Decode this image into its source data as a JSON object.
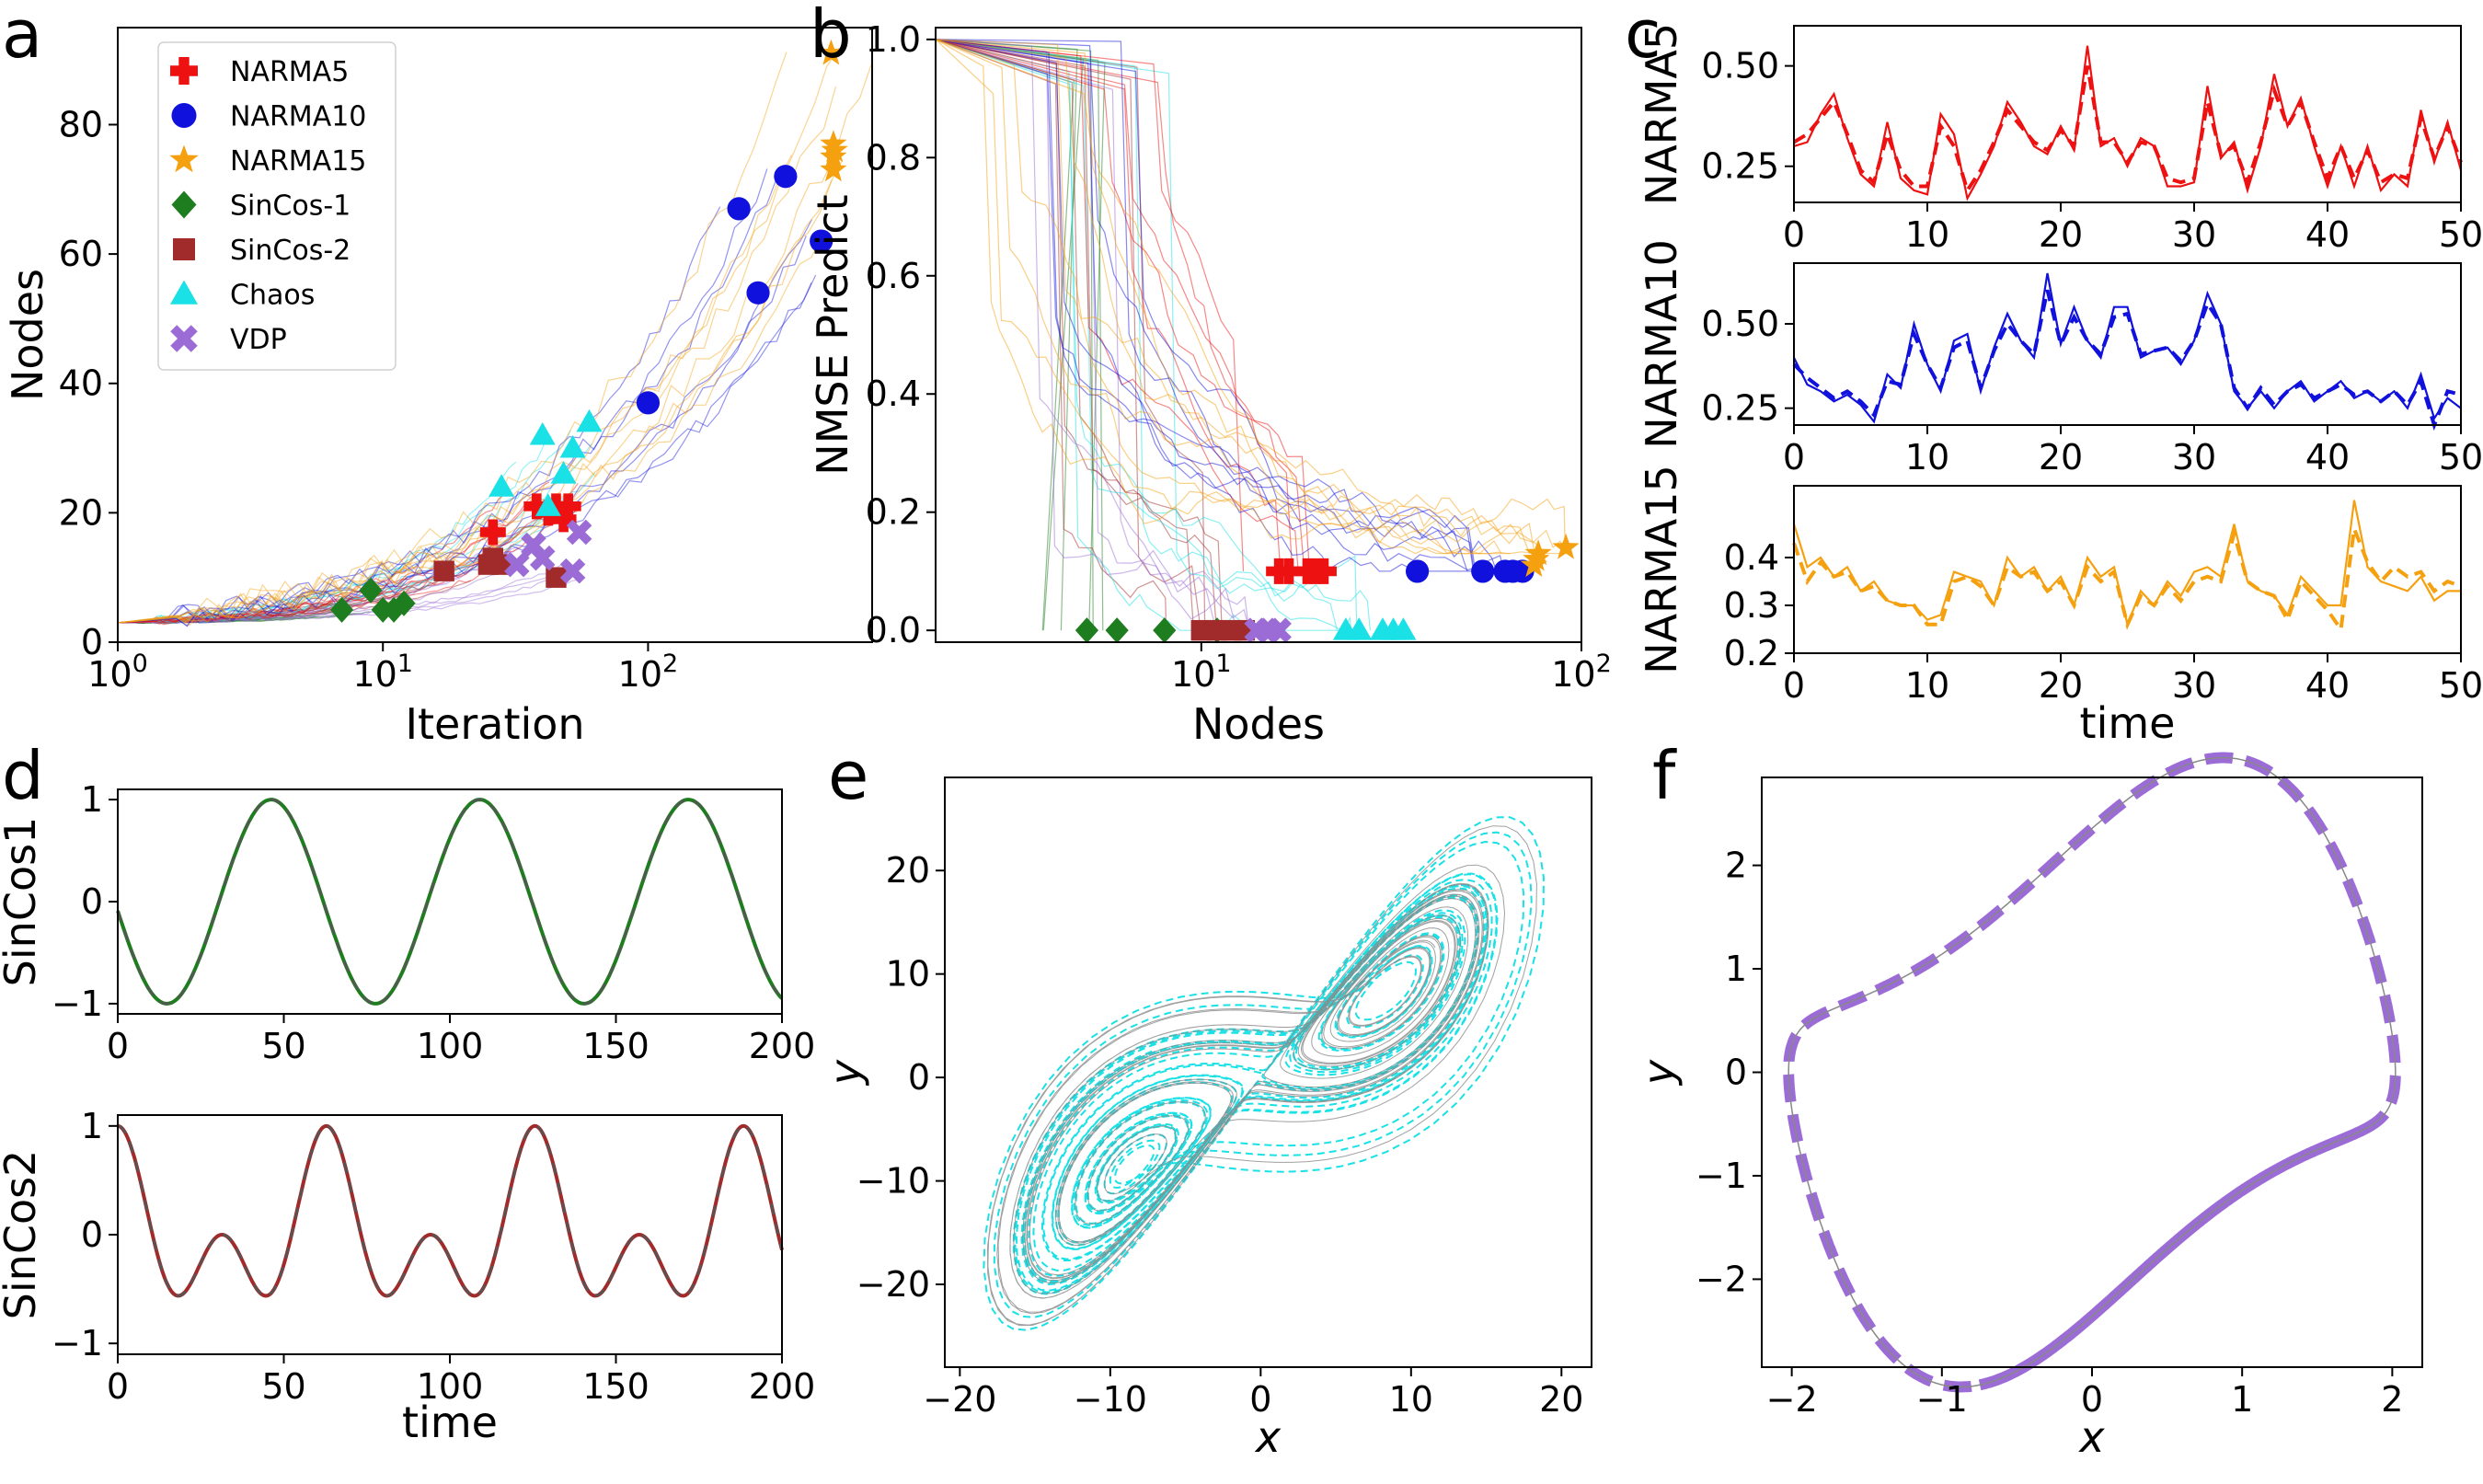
{
  "panel_letters": {
    "a": "a",
    "b": "b",
    "c": "c",
    "d": "d",
    "e": "e",
    "f": "f"
  },
  "colors": {
    "NARMA5": "#ee1111",
    "NARMA10": "#1111dd",
    "NARMA15": "#f5a00f",
    "SinCos-1": "#1e7d1e",
    "SinCos-2": "#a12a2a",
    "Chaos": "#19e1e6",
    "VDP": "#9b6cd6",
    "gray": "#888888"
  },
  "chart_data": [
    {
      "id": "a",
      "type": "scatter",
      "xlabel": "Iteration",
      "ylabel": "Nodes",
      "xscale": "log",
      "xlim": [
        1,
        700
      ],
      "ylim": [
        0,
        95
      ],
      "xticks": [
        1,
        10,
        100
      ],
      "xtick_labels": [
        "10^0",
        "10^1",
        "10^2"
      ],
      "yticks": [
        0,
        20,
        40,
        60,
        80
      ],
      "ytick_labels": [
        "0",
        "20",
        "40",
        "60",
        "80"
      ],
      "legend": {
        "placement": "upper-left",
        "entries": [
          "NARMA5",
          "NARMA10",
          "NARMA15",
          "SinCos-1",
          "SinCos-2",
          "Chaos",
          "VDP"
        ]
      },
      "series": [
        {
          "name": "NARMA5",
          "marker": "plus",
          "points": [
            [
              26,
              17
            ],
            [
              38,
              21
            ],
            [
              42,
              20
            ],
            [
              45,
              21
            ],
            [
              48,
              19
            ],
            [
              50,
              21
            ]
          ]
        },
        {
          "name": "NARMA10",
          "marker": "circle",
          "points": [
            [
              100,
              37
            ],
            [
              220,
              67
            ],
            [
              260,
              54
            ],
            [
              330,
              72
            ],
            [
              450,
              62
            ]
          ]
        },
        {
          "name": "NARMA15",
          "marker": "star",
          "points": [
            [
              490,
              91
            ],
            [
              500,
              77
            ],
            [
              500,
              75
            ],
            [
              500,
              73
            ],
            [
              505,
              76
            ]
          ]
        },
        {
          "name": "SinCos-1",
          "marker": "diamond",
          "points": [
            [
              7,
              5
            ],
            [
              9,
              8
            ],
            [
              10,
              5
            ],
            [
              11,
              5
            ],
            [
              12,
              6
            ]
          ]
        },
        {
          "name": "SinCos-2",
          "marker": "square",
          "points": [
            [
              17,
              11
            ],
            [
              25,
              12
            ],
            [
              26,
              13
            ],
            [
              28,
              12
            ],
            [
              45,
              10
            ]
          ]
        },
        {
          "name": "Chaos",
          "marker": "triangle",
          "points": [
            [
              28,
              24
            ],
            [
              40,
              32
            ],
            [
              42,
              21
            ],
            [
              48,
              26
            ],
            [
              52,
              30
            ],
            [
              60,
              34
            ]
          ]
        },
        {
          "name": "VDP",
          "marker": "x",
          "points": [
            [
              32,
              12
            ],
            [
              37,
              15
            ],
            [
              40,
              13
            ],
            [
              52,
              11
            ],
            [
              55,
              17
            ]
          ]
        }
      ]
    },
    {
      "id": "b",
      "type": "scatter",
      "xlabel": "Nodes",
      "ylabel": "NMSE Predict",
      "xscale": "log",
      "xlim": [
        2,
        100
      ],
      "ylim": [
        -0.02,
        1.02
      ],
      "xticks": [
        10,
        100
      ],
      "xtick_labels": [
        "10^1",
        "10^2"
      ],
      "yticks": [
        0,
        0.2,
        0.4,
        0.6,
        0.8,
        1.0
      ],
      "ytick_labels": [
        "0.0",
        "0.2",
        "0.4",
        "0.6",
        "0.8",
        "1.0"
      ],
      "series": [
        {
          "name": "NARMA5",
          "marker": "plus",
          "points": [
            [
              16,
              0.1
            ],
            [
              17,
              0.1
            ],
            [
              19,
              0.1
            ],
            [
              20,
              0.1
            ],
            [
              21,
              0.1
            ]
          ]
        },
        {
          "name": "NARMA10",
          "marker": "circle",
          "points": [
            [
              37,
              0.1
            ],
            [
              55,
              0.1
            ],
            [
              63,
              0.1
            ],
            [
              66,
              0.1
            ],
            [
              70,
              0.1
            ]
          ]
        },
        {
          "name": "NARMA15",
          "marker": "star",
          "points": [
            [
              75,
              0.11
            ],
            [
              76,
              0.12
            ],
            [
              77,
              0.13
            ],
            [
              91,
              0.14
            ]
          ]
        },
        {
          "name": "SinCos-1",
          "marker": "diamond",
          "points": [
            [
              5,
              0.0
            ],
            [
              6,
              0.0
            ],
            [
              8,
              0.0
            ],
            [
              11,
              0.0
            ]
          ]
        },
        {
          "name": "SinCos-2",
          "marker": "square",
          "points": [
            [
              10,
              0.0
            ],
            [
              11,
              0.0
            ],
            [
              12,
              0.0
            ],
            [
              13,
              0.0
            ]
          ]
        },
        {
          "name": "Chaos",
          "marker": "triangle",
          "points": [
            [
              24,
              0.0
            ],
            [
              26,
              0.0
            ],
            [
              30,
              0.0
            ],
            [
              32,
              0.0
            ],
            [
              34,
              0.0
            ]
          ]
        },
        {
          "name": "VDP",
          "marker": "x",
          "points": [
            [
              14,
              0.0
            ],
            [
              15,
              0.0
            ],
            [
              16,
              0.0
            ]
          ]
        }
      ]
    },
    {
      "id": "c1",
      "type": "line",
      "xlabel": "",
      "ylabel": "NARMA5",
      "xlim": [
        0,
        50
      ],
      "ylim": [
        0.16,
        0.6
      ],
      "xticks": [
        0,
        10,
        20,
        30,
        40,
        50
      ],
      "xtick_labels": [
        "0",
        "10",
        "20",
        "30",
        "40",
        "50"
      ],
      "yticks": [
        0.25,
        0.5
      ],
      "ytick_labels": [
        "0.25",
        "0.50"
      ],
      "series": [
        {
          "name": "",
          "style": "solid",
          "y": [
            0.3,
            0.31,
            0.38,
            0.43,
            0.32,
            0.23,
            0.2,
            0.36,
            0.22,
            0.19,
            0.18,
            0.38,
            0.33,
            0.17,
            0.23,
            0.3,
            0.41,
            0.36,
            0.3,
            0.28,
            0.35,
            0.29,
            0.55,
            0.3,
            0.32,
            0.25,
            0.32,
            0.3,
            0.2,
            0.2,
            0.21,
            0.45,
            0.27,
            0.31,
            0.19,
            0.3,
            0.48,
            0.35,
            0.42,
            0.3,
            0.2,
            0.3,
            0.2,
            0.3,
            0.19,
            0.23,
            0.2,
            0.39,
            0.26,
            0.36,
            0.24
          ]
        },
        {
          "name": "",
          "style": "dashed",
          "y": [
            0.31,
            0.33,
            0.37,
            0.41,
            0.33,
            0.24,
            0.21,
            0.33,
            0.24,
            0.2,
            0.2,
            0.35,
            0.3,
            0.19,
            0.24,
            0.31,
            0.39,
            0.35,
            0.31,
            0.29,
            0.34,
            0.3,
            0.5,
            0.31,
            0.31,
            0.26,
            0.31,
            0.3,
            0.22,
            0.21,
            0.22,
            0.41,
            0.28,
            0.3,
            0.21,
            0.31,
            0.44,
            0.35,
            0.41,
            0.31,
            0.22,
            0.3,
            0.22,
            0.29,
            0.21,
            0.23,
            0.22,
            0.37,
            0.27,
            0.35,
            0.26
          ]
        }
      ]
    },
    {
      "id": "c2",
      "type": "line",
      "xlabel": "",
      "ylabel": "NARMA10",
      "xlim": [
        0,
        50
      ],
      "ylim": [
        0.2,
        0.68
      ],
      "xticks": [
        0,
        10,
        20,
        30,
        40,
        50
      ],
      "xtick_labels": [
        "0",
        "10",
        "20",
        "30",
        "40",
        "50"
      ],
      "yticks": [
        0.25,
        0.5
      ],
      "ytick_labels": [
        "0.25",
        "0.50"
      ],
      "series": [
        {
          "name": "",
          "style": "solid",
          "y": [
            0.4,
            0.32,
            0.3,
            0.27,
            0.29,
            0.26,
            0.21,
            0.35,
            0.31,
            0.5,
            0.38,
            0.3,
            0.45,
            0.47,
            0.3,
            0.43,
            0.53,
            0.45,
            0.4,
            0.65,
            0.44,
            0.55,
            0.45,
            0.4,
            0.55,
            0.55,
            0.4,
            0.42,
            0.43,
            0.38,
            0.45,
            0.59,
            0.5,
            0.3,
            0.25,
            0.3,
            0.25,
            0.3,
            0.33,
            0.27,
            0.3,
            0.33,
            0.28,
            0.3,
            0.27,
            0.3,
            0.25,
            0.35,
            0.22,
            0.28,
            0.25
          ]
        },
        {
          "name": "",
          "style": "dashed",
          "y": [
            0.38,
            0.34,
            0.31,
            0.28,
            0.3,
            0.27,
            0.23,
            0.33,
            0.32,
            0.47,
            0.38,
            0.31,
            0.43,
            0.45,
            0.31,
            0.42,
            0.5,
            0.45,
            0.41,
            0.6,
            0.44,
            0.52,
            0.45,
            0.41,
            0.52,
            0.53,
            0.41,
            0.42,
            0.43,
            0.39,
            0.45,
            0.56,
            0.5,
            0.31,
            0.25,
            0.31,
            0.26,
            0.3,
            0.32,
            0.28,
            0.3,
            0.32,
            0.29,
            0.3,
            0.27,
            0.3,
            0.26,
            0.33,
            0.2,
            0.3,
            0.29
          ]
        }
      ]
    },
    {
      "id": "c3",
      "type": "line",
      "xlabel": "time",
      "ylabel": "NARMA15",
      "xlim": [
        0,
        50
      ],
      "ylim": [
        0.2,
        0.55
      ],
      "xticks": [
        0,
        10,
        20,
        30,
        40,
        50
      ],
      "xtick_labels": [
        "0",
        "10",
        "20",
        "30",
        "40",
        "50"
      ],
      "yticks": [
        0.2,
        0.3,
        0.4
      ],
      "ytick_labels": [
        "0.2",
        "0.3",
        "0.4"
      ],
      "series": [
        {
          "name": "",
          "style": "solid",
          "y": [
            0.47,
            0.38,
            0.4,
            0.36,
            0.38,
            0.33,
            0.35,
            0.31,
            0.3,
            0.3,
            0.27,
            0.28,
            0.37,
            0.36,
            0.35,
            0.3,
            0.4,
            0.36,
            0.38,
            0.33,
            0.36,
            0.3,
            0.4,
            0.36,
            0.38,
            0.26,
            0.33,
            0.3,
            0.35,
            0.32,
            0.37,
            0.38,
            0.36,
            0.47,
            0.35,
            0.33,
            0.32,
            0.28,
            0.36,
            0.33,
            0.3,
            0.3,
            0.52,
            0.38,
            0.35,
            0.34,
            0.33,
            0.36,
            0.31,
            0.33,
            0.33
          ]
        },
        {
          "name": "",
          "style": "dashed",
          "y": [
            0.43,
            0.35,
            0.39,
            0.36,
            0.37,
            0.33,
            0.34,
            0.31,
            0.3,
            0.3,
            0.26,
            0.26,
            0.35,
            0.36,
            0.34,
            0.3,
            0.38,
            0.36,
            0.37,
            0.33,
            0.35,
            0.3,
            0.38,
            0.35,
            0.37,
            0.26,
            0.32,
            0.3,
            0.34,
            0.31,
            0.35,
            0.36,
            0.35,
            0.45,
            0.35,
            0.33,
            0.32,
            0.27,
            0.35,
            0.32,
            0.29,
            0.25,
            0.46,
            0.39,
            0.35,
            0.38,
            0.36,
            0.37,
            0.33,
            0.35,
            0.34
          ]
        }
      ]
    },
    {
      "id": "d1",
      "type": "line",
      "xlabel": "",
      "ylabel": "SinCos1",
      "xlim": [
        0,
        200
      ],
      "ylim": [
        -1.1,
        1.1
      ],
      "xticks": [
        0,
        50,
        100,
        150,
        200
      ],
      "xtick_labels": [
        "0",
        "50",
        "100",
        "150",
        "200"
      ],
      "yticks": [
        -1,
        0,
        1
      ],
      "ytick_labels": [
        "−1",
        "0",
        "1"
      ],
      "series": [
        {
          "name": "",
          "style": "solid",
          "formula": "sin(2*pi*(t-30.5)/62.8)"
        },
        {
          "name": "",
          "style": "dashed",
          "formula": "sin(2*pi*(t-30.5)/62.8)"
        }
      ]
    },
    {
      "id": "d2",
      "type": "line",
      "xlabel": "time",
      "ylabel": "SinCos2",
      "xlim": [
        0,
        200
      ],
      "ylim": [
        -1.1,
        1.1
      ],
      "xticks": [
        0,
        50,
        100,
        150,
        200
      ],
      "xtick_labels": [
        "0",
        "50",
        "100",
        "150",
        "200"
      ],
      "yticks": [
        -1,
        0,
        1
      ],
      "ytick_labels": [
        "−1",
        "0",
        "1"
      ],
      "series": [
        {
          "name": "",
          "style": "solid",
          "formula": "0.5cos(w t)+0.5cos(2 w t), w=2pi/62.8"
        },
        {
          "name": "",
          "style": "dashed",
          "formula": "0.5cos(w t)+0.5cos(2 w t), w=2pi/62.8"
        }
      ]
    },
    {
      "id": "e",
      "type": "line",
      "xlabel": "x",
      "ylabel": "y",
      "xlim": [
        -21,
        22
      ],
      "ylim": [
        -28,
        29
      ],
      "xticks": [
        -20,
        -10,
        0,
        10,
        20
      ],
      "xtick_labels": [
        "−20",
        "−10",
        "0",
        "10",
        "20"
      ],
      "yticks": [
        -20,
        -10,
        0,
        10,
        20
      ],
      "ytick_labels": [
        "−20",
        "−10",
        "0",
        "10",
        "20"
      ],
      "series": [
        {
          "name": "",
          "style": "solid",
          "color": "gray",
          "description": "Lorenz attractor x-y projection"
        },
        {
          "name": "",
          "style": "dashed",
          "color": "Chaos"
        }
      ]
    },
    {
      "id": "f",
      "type": "line",
      "xlabel": "x",
      "ylabel": "y",
      "xlim": [
        -2.2,
        2.2
      ],
      "ylim": [
        -2.85,
        2.85
      ],
      "xticks": [
        -2,
        -1,
        0,
        1,
        2
      ],
      "xtick_labels": [
        "−2",
        "−1",
        "0",
        "1",
        "2"
      ],
      "yticks": [
        -2,
        -1,
        0,
        1,
        2
      ],
      "ytick_labels": [
        "−2",
        "−1",
        "0",
        "1",
        "2"
      ],
      "series": [
        {
          "name": "",
          "style": "solid",
          "color": "gray",
          "description": "Van der Pol limit cycle"
        },
        {
          "name": "",
          "style": "dashed",
          "color": "VDP"
        }
      ]
    }
  ]
}
